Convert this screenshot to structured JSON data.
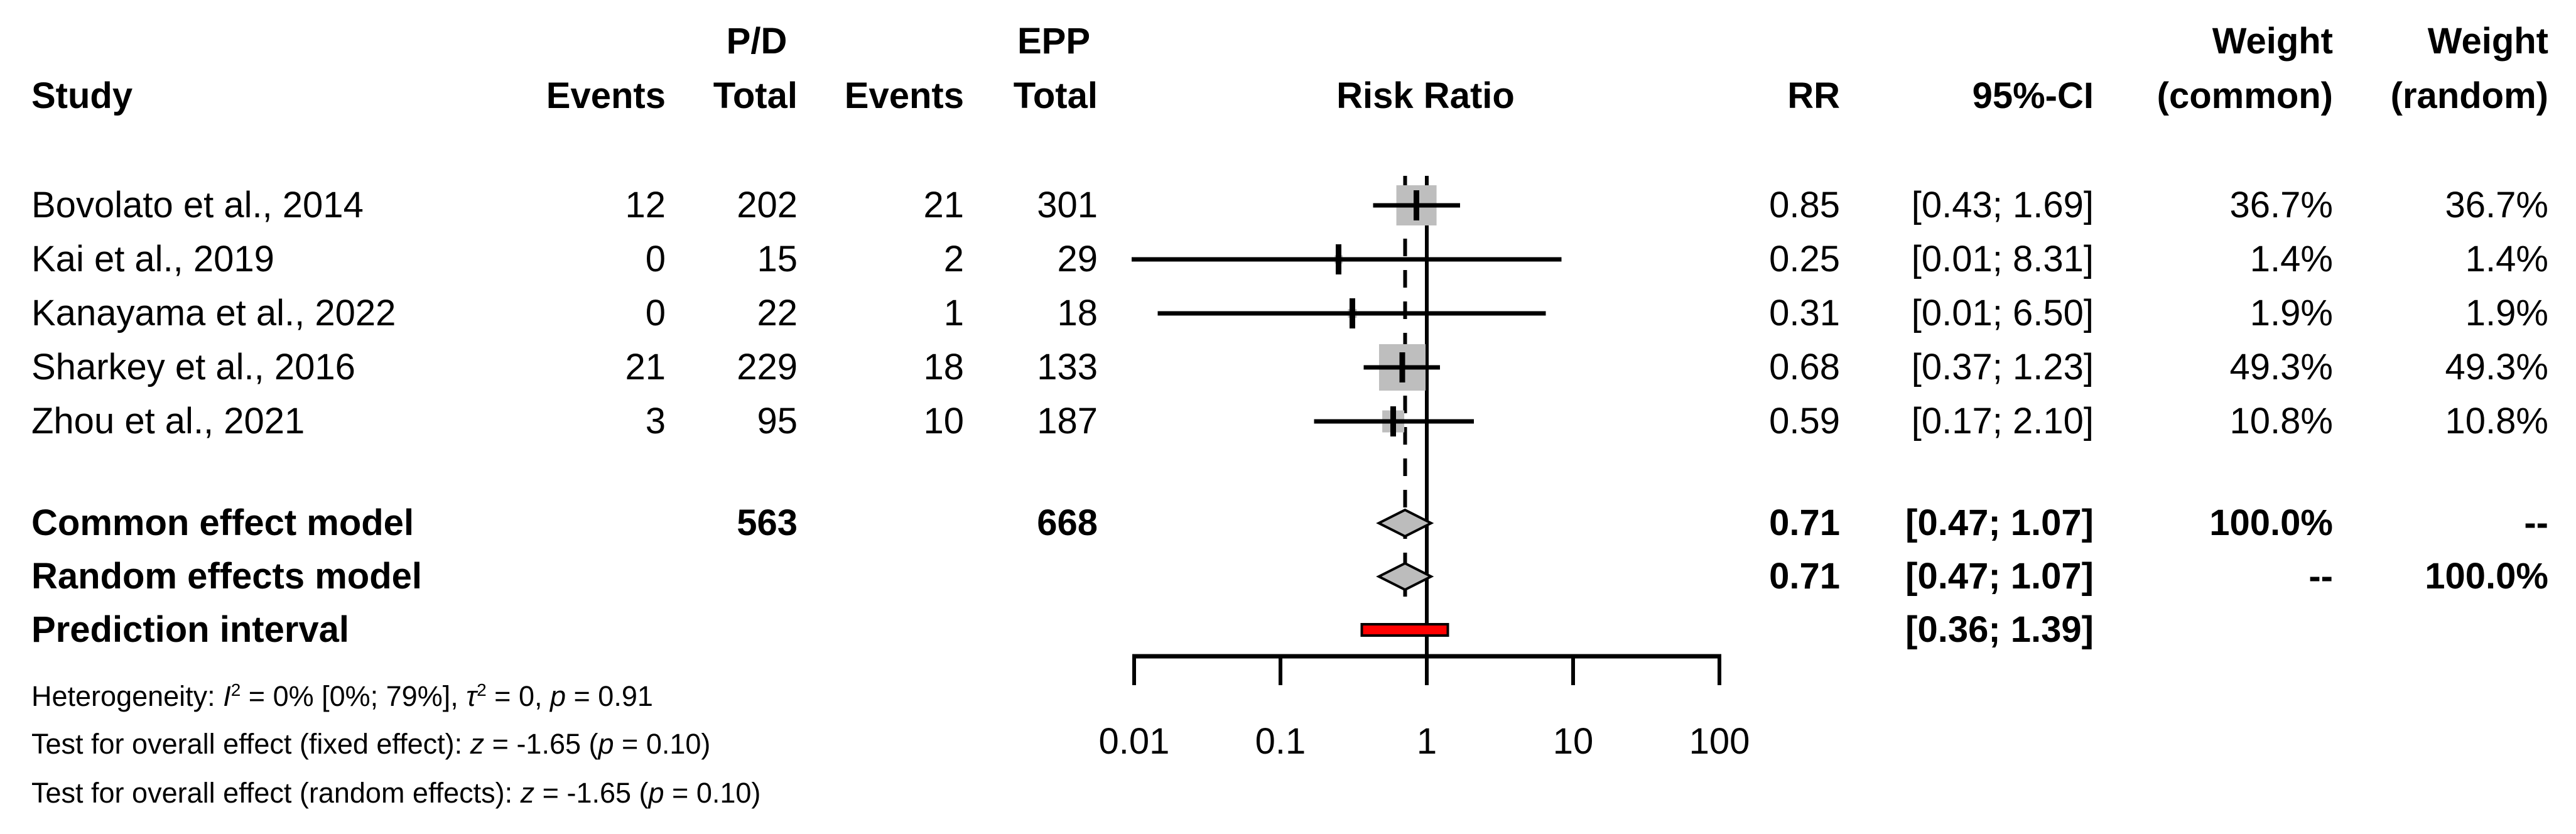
{
  "header": {
    "study": "Study",
    "pd_group": "P/D",
    "epp_group": "EPP",
    "events": "Events",
    "total": "Total",
    "risk_ratio": "Risk Ratio",
    "rr": "RR",
    "ci": "95%-CI",
    "weight": "Weight",
    "weight_common_sub": "(common)",
    "weight_random_sub": "(random)"
  },
  "chart_data": {
    "type": "forest",
    "effect_measure": "Risk Ratio",
    "x_axis": {
      "scale": "log10",
      "tick_values": [
        0.01,
        0.1,
        1,
        10,
        100
      ],
      "tick_labels": [
        "0.01",
        "0.1",
        "1",
        "10",
        "100"
      ],
      "range": [
        0.01,
        100
      ]
    },
    "reference_line": 1,
    "pooled_effect_line": 0.71,
    "studies": [
      {
        "name": "Bovolato et al., 2014",
        "pd_events": "12",
        "pd_total": "202",
        "epp_events": "21",
        "epp_total": "301",
        "rr": 0.85,
        "rr_label": "0.85",
        "ci_label": "[0.43; 1.69]",
        "ci_lo": 0.43,
        "ci_hi": 1.69,
        "plot_lo": 0.43,
        "plot_hi": 1.69,
        "weight_common": "36.7%",
        "weight_random": "36.7%",
        "weight_pct": 36.7
      },
      {
        "name": "Kai et al., 2019",
        "pd_events": "0",
        "pd_total": "15",
        "epp_events": "2",
        "epp_total": "29",
        "rr": 0.25,
        "rr_label": "0.25",
        "ci_label": "[0.01; 8.31]",
        "ci_lo": 0.01,
        "ci_hi": 8.31,
        "plot_lo": 0.0096,
        "plot_hi": 8.31,
        "weight_common": "1.4%",
        "weight_random": "1.4%",
        "weight_pct": 1.4
      },
      {
        "name": "Kanayama et al., 2022",
        "pd_events": "0",
        "pd_total": "22",
        "epp_events": "1",
        "epp_total": "18",
        "rr": 0.31,
        "rr_label": "0.31",
        "ci_label": "[0.01; 6.50]",
        "ci_lo": 0.01,
        "ci_hi": 6.5,
        "plot_lo": 0.0145,
        "plot_hi": 6.5,
        "weight_common": "1.9%",
        "weight_random": "1.9%",
        "weight_pct": 1.9
      },
      {
        "name": "Sharkey et al., 2016",
        "pd_events": "21",
        "pd_total": "229",
        "epp_events": "18",
        "epp_total": "133",
        "rr": 0.68,
        "rr_label": "0.68",
        "ci_label": "[0.37; 1.23]",
        "ci_lo": 0.37,
        "ci_hi": 1.23,
        "plot_lo": 0.37,
        "plot_hi": 1.23,
        "weight_common": "49.3%",
        "weight_random": "49.3%",
        "weight_pct": 49.3
      },
      {
        "name": "Zhou et al., 2021",
        "pd_events": "3",
        "pd_total": "95",
        "epp_events": "10",
        "epp_total": "187",
        "rr": 0.59,
        "rr_label": "0.59",
        "ci_label": "[0.17; 2.10]",
        "ci_lo": 0.17,
        "ci_hi": 2.1,
        "plot_lo": 0.17,
        "plot_hi": 2.1,
        "weight_common": "10.8%",
        "weight_random": "10.8%",
        "weight_pct": 10.8
      }
    ],
    "summaries": [
      {
        "name": "Common effect model",
        "pd_total": "563",
        "epp_total": "668",
        "rr_label": "0.71",
        "ci_label": "[0.47; 1.07]",
        "center": 0.71,
        "ci_lo": 0.47,
        "ci_hi": 1.07,
        "weight_common": "100.0%",
        "weight_random": "--",
        "marker": "diamond"
      },
      {
        "name": "Random effects model",
        "pd_total": "",
        "epp_total": "",
        "rr_label": "0.71",
        "ci_label": "[0.47; 1.07]",
        "center": 0.71,
        "ci_lo": 0.47,
        "ci_hi": 1.07,
        "weight_common": "--",
        "weight_random": "100.0%",
        "marker": "diamond"
      },
      {
        "name": "Prediction interval",
        "pd_total": "",
        "epp_total": "",
        "rr_label": "",
        "ci_label": "[0.36; 1.39]",
        "center": null,
        "ci_lo": 0.36,
        "ci_hi": 1.39,
        "weight_common": "",
        "weight_random": "",
        "marker": "bar"
      }
    ],
    "footnotes": [
      [
        {
          "t": "Heterogeneity: "
        },
        {
          "t": "I",
          "it": true
        },
        {
          "t": "2",
          "sup": true
        },
        {
          "t": " = 0% [0%; 79%], "
        },
        {
          "t": "τ",
          "it": true
        },
        {
          "t": "2",
          "sup": true
        },
        {
          "t": " = 0, "
        },
        {
          "t": "p",
          "it": true
        },
        {
          "t": " = 0.91"
        }
      ],
      [
        {
          "t": "Test for overall effect (fixed effect): "
        },
        {
          "t": "z",
          "it": true
        },
        {
          "t": " = -1.65 ("
        },
        {
          "t": "p",
          "it": true
        },
        {
          "t": " = 0.10)"
        }
      ],
      [
        {
          "t": "Test for overall effect (random effects): "
        },
        {
          "t": "z",
          "it": true
        },
        {
          "t": " = -1.65 ("
        },
        {
          "t": "p",
          "it": true
        },
        {
          "t": " = 0.10)"
        }
      ]
    ],
    "colors": {
      "square": "#bebebe",
      "diamond_fill": "#bcbcbc",
      "prediction_bar": "#ff0000",
      "line": "#000000",
      "text": "#000000"
    },
    "legend_position": "none",
    "grid": false
  }
}
